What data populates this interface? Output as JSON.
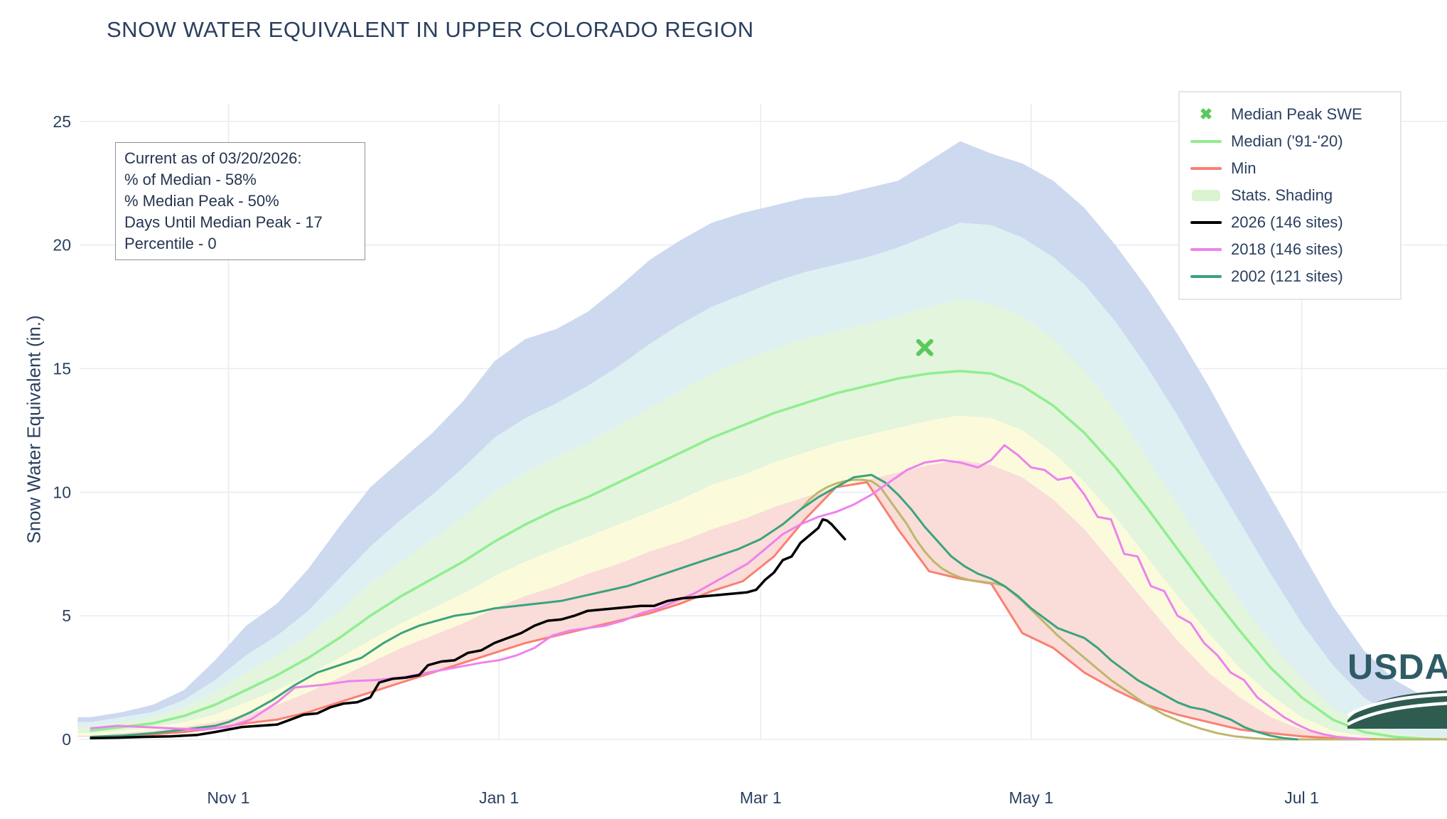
{
  "title": "SNOW WATER EQUIVALENT IN UPPER COLORADO REGION",
  "y_axis_label": "Snow Water Equivalent (in.)",
  "annotation": {
    "lines": [
      "Current as of 03/20/2026:",
      "% of Median - 58%",
      "% Median Peak - 50%",
      "Days Until Median Peak - 17",
      "Percentile - 0"
    ]
  },
  "legend": {
    "items": [
      {
        "label": "Median Peak SWE",
        "swatch": "marker-x",
        "color": "#5bc85b"
      },
      {
        "label": "Median ('91-'20)",
        "swatch": "line",
        "color": "#90ee90"
      },
      {
        "label": "Min",
        "swatch": "line",
        "color": "#fa8072"
      },
      {
        "label": "Stats. Shading",
        "swatch": "patch",
        "color": "#d9f3cf"
      },
      {
        "label": "2026 (146 sites)",
        "swatch": "line",
        "color": "#000000"
      },
      {
        "label": "2018 (146 sites)",
        "swatch": "line",
        "color": "#ee82ee"
      },
      {
        "label": "2002 (121 sites)",
        "swatch": "line",
        "color": "#3aa37e"
      }
    ]
  },
  "logo": {
    "text": "USDA"
  },
  "chart_data": {
    "type": "line",
    "title": "SNOW WATER EQUIVALENT IN UPPER COLORADO REGION",
    "xlabel": "",
    "ylabel": "Snow Water Equivalent (in.)",
    "x_unit": "days since Oct 1",
    "xlim": [
      0,
      306
    ],
    "ylim": [
      0,
      25
    ],
    "grid": true,
    "legend_position": "top-right",
    "x_ticks": [
      {
        "day": 31,
        "label": "Nov 1"
      },
      {
        "day": 92,
        "label": "Jan 1"
      },
      {
        "day": 151,
        "label": "Mar 1"
      },
      {
        "day": 212,
        "label": "May 1"
      },
      {
        "day": 273,
        "label": "Jul 1"
      }
    ],
    "y_ticks": [
      0,
      5,
      10,
      15,
      20,
      25
    ],
    "band_days": [
      0,
      7,
      14,
      21,
      28,
      35,
      42,
      49,
      56,
      63,
      70,
      77,
      84,
      91,
      98,
      105,
      112,
      119,
      126,
      133,
      140,
      147,
      154,
      161,
      168,
      175,
      182,
      189,
      196,
      203,
      210,
      217,
      224,
      231,
      238,
      245,
      252,
      259,
      266,
      273,
      280,
      287,
      294,
      301,
      306
    ],
    "band_curves": {
      "max": [
        0.9,
        1.1,
        1.4,
        2.0,
        3.2,
        4.6,
        5.5,
        6.9,
        8.6,
        10.2,
        11.3,
        12.4,
        13.7,
        15.3,
        16.2,
        16.6,
        17.3,
        18.3,
        19.4,
        20.2,
        20.9,
        21.3,
        21.6,
        21.9,
        22.0,
        22.3,
        22.6,
        23.4,
        24.2,
        23.7,
        23.3,
        22.6,
        21.5,
        20.0,
        18.3,
        16.4,
        14.3,
        12.0,
        9.8,
        7.6,
        5.4,
        3.6,
        2.4,
        1.7,
        1.5
      ],
      "p90": [
        0.7,
        0.9,
        1.1,
        1.6,
        2.4,
        3.4,
        4.2,
        5.2,
        6.5,
        7.8,
        8.9,
        9.9,
        11.0,
        12.2,
        13.0,
        13.6,
        14.3,
        15.1,
        16.0,
        16.8,
        17.5,
        18.0,
        18.5,
        18.9,
        19.2,
        19.5,
        19.9,
        20.4,
        20.9,
        20.8,
        20.3,
        19.5,
        18.4,
        16.9,
        15.1,
        13.1,
        10.9,
        8.8,
        6.7,
        4.7,
        3.0,
        1.7,
        0.9,
        0.5,
        0.4
      ],
      "p70": [
        0.5,
        0.7,
        0.9,
        1.3,
        1.9,
        2.7,
        3.4,
        4.2,
        5.2,
        6.3,
        7.2,
        8.1,
        9.0,
        10.0,
        10.8,
        11.4,
        12.0,
        12.7,
        13.4,
        14.1,
        14.8,
        15.3,
        15.8,
        16.2,
        16.5,
        16.8,
        17.1,
        17.5,
        17.8,
        17.6,
        17.1,
        16.2,
        14.9,
        13.3,
        11.4,
        9.5,
        7.5,
        5.6,
        3.9,
        2.5,
        1.3,
        0.6,
        0.25,
        0.1,
        0.05
      ],
      "p30": [
        0.25,
        0.35,
        0.5,
        0.7,
        1.0,
        1.5,
        2.0,
        2.6,
        3.3,
        4.0,
        4.7,
        5.3,
        5.9,
        6.6,
        7.2,
        7.7,
        8.2,
        8.7,
        9.2,
        9.7,
        10.3,
        10.7,
        11.2,
        11.6,
        12.0,
        12.3,
        12.6,
        12.9,
        13.1,
        13.0,
        12.5,
        11.6,
        10.4,
        9.0,
        7.4,
        5.8,
        4.3,
        2.9,
        1.8,
        0.9,
        0.35,
        0.12,
        0.04,
        0,
        0
      ],
      "p10": [
        0.15,
        0.25,
        0.35,
        0.5,
        0.7,
        1.0,
        1.4,
        1.9,
        2.5,
        3.1,
        3.7,
        4.2,
        4.7,
        5.3,
        5.8,
        6.2,
        6.7,
        7.1,
        7.6,
        8.0,
        8.5,
        8.9,
        9.4,
        9.8,
        10.2,
        10.5,
        10.8,
        11.1,
        11.3,
        11.1,
        10.6,
        9.7,
        8.5,
        7.0,
        5.5,
        4.0,
        2.7,
        1.7,
        0.9,
        0.4,
        0.15,
        0.05,
        0,
        0,
        0
      ],
      "min": [
        0.1,
        0.15,
        0.2,
        0.3,
        0.45,
        0.65,
        0.8,
        1.1,
        1.5,
        1.9,
        2.3,
        2.7,
        3.1,
        3.5,
        3.9,
        4.2,
        4.5,
        4.8,
        5.1,
        5.5,
        6.0,
        6.4,
        7.4,
        8.9,
        10.2,
        10.4,
        8.5,
        6.8,
        6.5,
        6.3,
        4.3,
        3.7,
        2.7,
        2.0,
        1.4,
        1.0,
        0.7,
        0.4,
        0.25,
        0.12,
        0.05,
        0.02,
        0,
        0,
        0
      ]
    },
    "bands": [
      {
        "name": "p90-max",
        "upper": "max",
        "lower": "p90",
        "color": "#cdd9ef"
      },
      {
        "name": "p70-p90",
        "upper": "p90",
        "lower": "p70",
        "color": "#def0f2"
      },
      {
        "name": "p30-p70",
        "upper": "p70",
        "lower": "p30",
        "color": "#e3f5dc"
      },
      {
        "name": "p10-p30",
        "upper": "p30",
        "lower": "p10",
        "color": "#fbfbdb"
      },
      {
        "name": "min-p10",
        "upper": "p10",
        "lower": "min",
        "color": "#fadcd9"
      }
    ],
    "series": [
      {
        "name": "Min",
        "color": "#fa8072",
        "width": 3,
        "x": "band_days",
        "y": [
          0.1,
          0.15,
          0.2,
          0.3,
          0.45,
          0.65,
          0.8,
          1.1,
          1.5,
          1.9,
          2.3,
          2.7,
          3.1,
          3.5,
          3.9,
          4.2,
          4.5,
          4.8,
          5.1,
          5.5,
          6.0,
          6.4,
          7.4,
          8.9,
          10.2,
          10.4,
          8.5,
          6.8,
          6.5,
          6.3,
          4.3,
          3.7,
          2.7,
          2.0,
          1.4,
          1.0,
          0.7,
          0.4,
          0.25,
          0.12,
          0.05,
          0.02,
          0,
          0,
          0
        ]
      },
      {
        "name": "Median ('91-'20)",
        "color": "#90ee90",
        "width": 3.5,
        "x": "band_days",
        "y": [
          0.35,
          0.5,
          0.65,
          0.95,
          1.4,
          2.0,
          2.6,
          3.3,
          4.1,
          5.0,
          5.8,
          6.5,
          7.2,
          8.0,
          8.7,
          9.3,
          9.8,
          10.4,
          11.0,
          11.6,
          12.2,
          12.7,
          13.2,
          13.6,
          14.0,
          14.3,
          14.6,
          14.8,
          14.9,
          14.8,
          14.3,
          13.5,
          12.4,
          11.0,
          9.4,
          7.7,
          6.0,
          4.4,
          2.9,
          1.7,
          0.8,
          0.3,
          0.1,
          0.02,
          0
        ]
      },
      {
        "name": "(unlabeled dark-khaki line)",
        "color": "#bdb76b",
        "width": 3,
        "x": [
          158,
          160,
          162,
          164,
          166,
          168,
          170,
          172,
          174,
          176,
          178,
          180,
          182,
          184,
          186,
          188,
          190,
          192,
          194,
          196,
          198,
          200,
          202,
          204,
          206,
          210,
          214,
          218,
          222,
          226,
          230,
          234,
          238,
          242,
          246,
          250,
          254,
          258,
          262,
          266,
          273,
          280,
          290,
          300,
          306
        ],
        "y": [
          9.0,
          9.3,
          9.7,
          10.0,
          10.2,
          10.35,
          10.45,
          10.5,
          10.5,
          10.45,
          10.2,
          9.7,
          9.2,
          8.7,
          8.1,
          7.6,
          7.2,
          6.9,
          6.7,
          6.55,
          6.45,
          6.4,
          6.35,
          6.3,
          6.2,
          5.6,
          4.9,
          4.2,
          3.6,
          3.0,
          2.4,
          1.9,
          1.4,
          1.0,
          0.7,
          0.45,
          0.25,
          0.12,
          0.05,
          0,
          0,
          0,
          0,
          0,
          0
        ]
      },
      {
        "name": "2002 (121 sites)",
        "color": "#3aa37e",
        "width": 3,
        "x": [
          0,
          7,
          14,
          21,
          28,
          31,
          36,
          41,
          46,
          51,
          56,
          61,
          66,
          70,
          74,
          78,
          82,
          86,
          91,
          96,
          101,
          106,
          111,
          116,
          121,
          126,
          131,
          136,
          141,
          146,
          151,
          156,
          160,
          164,
          168,
          172,
          176,
          179,
          182,
          185,
          188,
          191,
          194,
          197,
          200,
          203,
          206,
          209,
          212,
          215,
          218,
          221,
          224,
          227,
          230,
          233,
          236,
          239,
          242,
          245,
          248,
          251,
          254,
          257,
          260,
          263,
          266,
          269,
          272
        ],
        "y": [
          0.1,
          0.15,
          0.25,
          0.4,
          0.55,
          0.7,
          1.1,
          1.6,
          2.2,
          2.7,
          3.0,
          3.3,
          3.9,
          4.3,
          4.6,
          4.8,
          5.0,
          5.1,
          5.3,
          5.4,
          5.5,
          5.6,
          5.8,
          6.0,
          6.2,
          6.5,
          6.8,
          7.1,
          7.4,
          7.7,
          8.1,
          8.7,
          9.3,
          9.8,
          10.2,
          10.6,
          10.7,
          10.4,
          9.9,
          9.3,
          8.6,
          8.0,
          7.4,
          7.0,
          6.7,
          6.5,
          6.2,
          5.8,
          5.3,
          4.9,
          4.5,
          4.3,
          4.1,
          3.7,
          3.2,
          2.8,
          2.4,
          2.1,
          1.8,
          1.5,
          1.3,
          1.2,
          1.0,
          0.8,
          0.5,
          0.3,
          0.15,
          0.05,
          0
        ]
      },
      {
        "name": "2018 (146 sites)",
        "color": "#ee82ee",
        "width": 3,
        "x": [
          0,
          6,
          12,
          18,
          24,
          31,
          36,
          42,
          46,
          52,
          58,
          64,
          70,
          76,
          82,
          88,
          92,
          96,
          100,
          104,
          108,
          112,
          116,
          120,
          124,
          128,
          132,
          136,
          140,
          144,
          148,
          152,
          156,
          160,
          164,
          168,
          172,
          176,
          180,
          184,
          188,
          192,
          196,
          200,
          203,
          206,
          209,
          212,
          215,
          218,
          221,
          224,
          227,
          230,
          233,
          236,
          239,
          242,
          245,
          248,
          251,
          254,
          257,
          260,
          263,
          266,
          269,
          272,
          275,
          278,
          281,
          284,
          288
        ],
        "y": [
          0.45,
          0.55,
          0.5,
          0.45,
          0.4,
          0.5,
          0.8,
          1.5,
          2.1,
          2.2,
          2.35,
          2.4,
          2.5,
          2.7,
          2.9,
          3.1,
          3.2,
          3.4,
          3.7,
          4.2,
          4.4,
          4.5,
          4.6,
          4.8,
          5.1,
          5.3,
          5.6,
          5.9,
          6.3,
          6.7,
          7.1,
          7.7,
          8.3,
          8.7,
          9.0,
          9.2,
          9.5,
          9.9,
          10.4,
          10.9,
          11.2,
          11.3,
          11.2,
          11.0,
          11.3,
          11.9,
          11.5,
          11.0,
          10.9,
          10.5,
          10.6,
          9.9,
          9.0,
          8.9,
          7.5,
          7.4,
          6.2,
          6.0,
          5.0,
          4.7,
          3.9,
          3.4,
          2.7,
          2.4,
          1.7,
          1.3,
          0.9,
          0.6,
          0.35,
          0.2,
          0.1,
          0.05,
          0
        ]
      },
      {
        "name": "2026 (146 sites)",
        "color": "#000000",
        "width": 3.5,
        "x": [
          0,
          6,
          12,
          18,
          24,
          28,
          31,
          34,
          38,
          42,
          45,
          48,
          51,
          54,
          57,
          60,
          63,
          65,
          68,
          71,
          74,
          76,
          79,
          82,
          85,
          88,
          91,
          94,
          97,
          100,
          103,
          106,
          109,
          112,
          115,
          118,
          121,
          124,
          127,
          130,
          133,
          136,
          139,
          142,
          145,
          148,
          150,
          152,
          154,
          156,
          158,
          160,
          162,
          164,
          165,
          166,
          167,
          168,
          169,
          170
        ],
        "y": [
          0.05,
          0.07,
          0.1,
          0.12,
          0.18,
          0.3,
          0.4,
          0.5,
          0.55,
          0.6,
          0.8,
          1.0,
          1.05,
          1.3,
          1.45,
          1.5,
          1.7,
          2.3,
          2.45,
          2.5,
          2.6,
          3.0,
          3.15,
          3.2,
          3.5,
          3.6,
          3.9,
          4.1,
          4.3,
          4.6,
          4.8,
          4.85,
          5.0,
          5.2,
          5.25,
          5.3,
          5.35,
          5.4,
          5.4,
          5.6,
          5.7,
          5.75,
          5.8,
          5.85,
          5.9,
          5.95,
          6.05,
          6.45,
          6.75,
          7.25,
          7.4,
          7.95,
          8.25,
          8.55,
          8.9,
          8.85,
          8.7,
          8.5,
          8.3,
          8.1
        ]
      }
    ],
    "marker": {
      "label": "Median Peak SWE",
      "day": 188,
      "value": 15.85,
      "color": "#5bc85b"
    }
  }
}
